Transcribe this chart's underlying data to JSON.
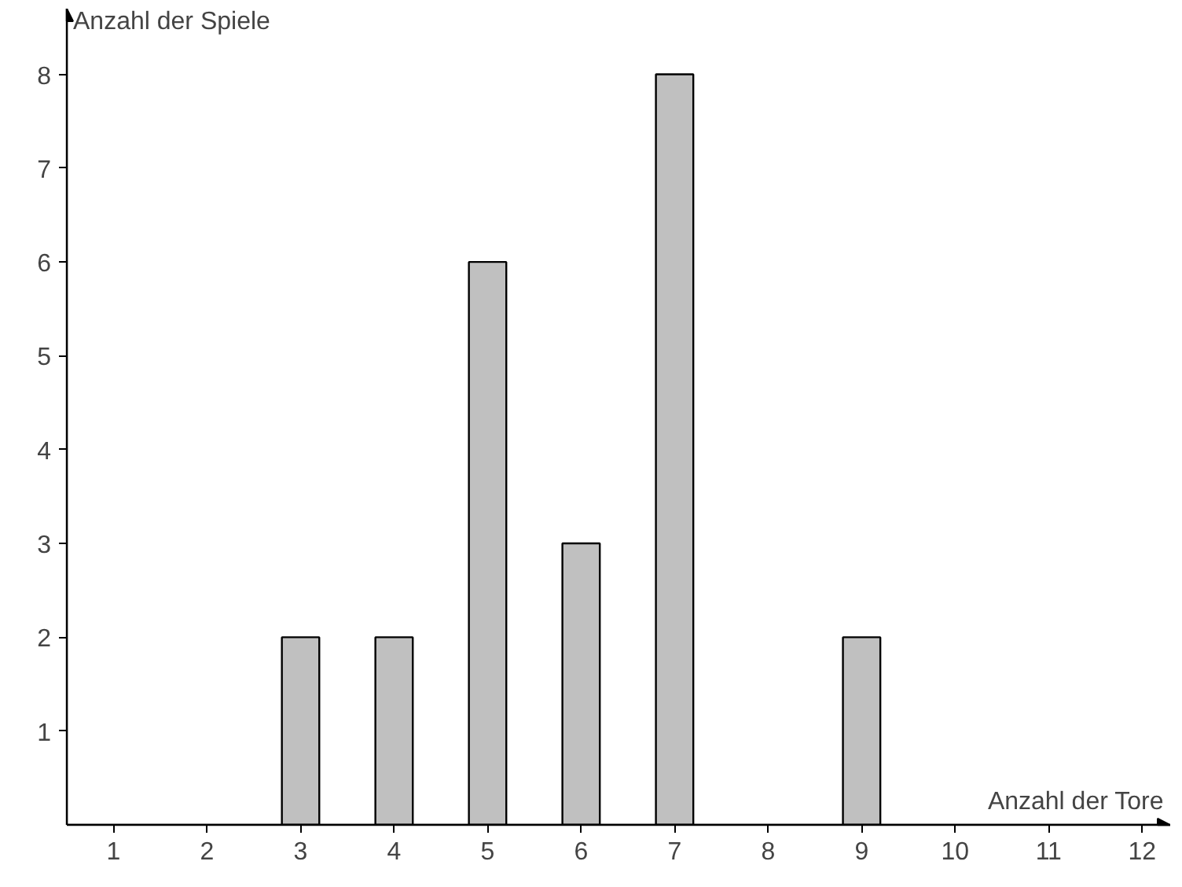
{
  "chart_data": {
    "type": "bar",
    "xlabel": "Anzahl der Tore",
    "ylabel": "Anzahl der Spiele",
    "x": [
      3,
      4,
      5,
      6,
      7,
      9
    ],
    "values": [
      2,
      2,
      6,
      3,
      8,
      2
    ],
    "color": "#c0c0c0",
    "xlim": [
      0.5,
      12.3
    ],
    "ylim": [
      0,
      8.7
    ],
    "xticks": [
      1,
      2,
      3,
      4,
      5,
      6,
      7,
      8,
      9,
      10,
      11,
      12
    ],
    "yticks": [
      1,
      2,
      3,
      4,
      5,
      6,
      7,
      8
    ],
    "grid": false
  }
}
